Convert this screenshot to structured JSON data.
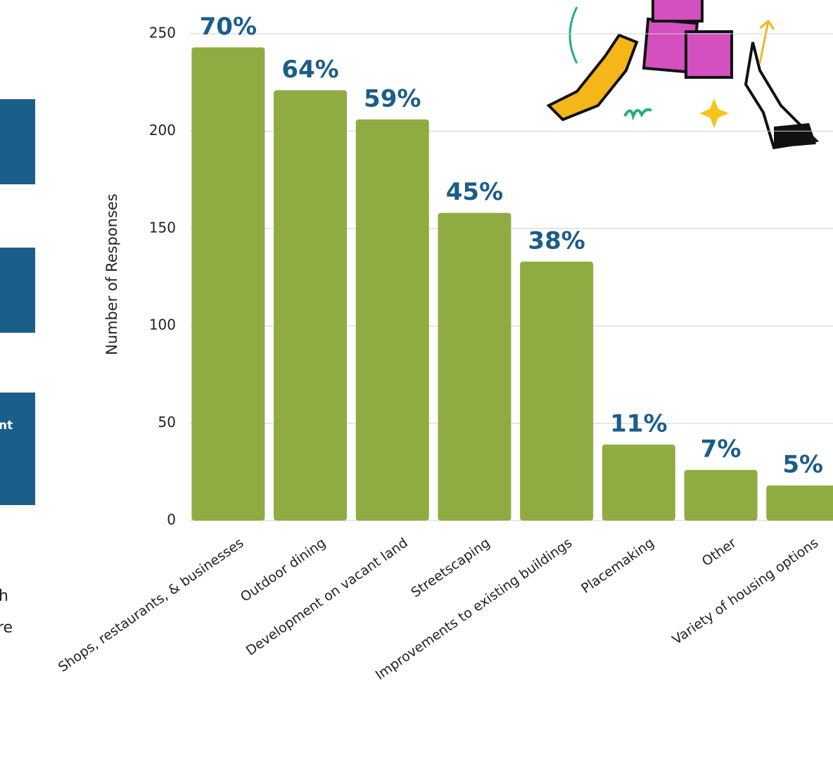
{
  "chart_data": {
    "type": "bar",
    "y_label": "Number of Responses",
    "categories": [
      "Shops, restaurants, & businesses",
      "Outdoor dining",
      "Development on vacant land",
      "Streetscaping",
      "Improvements to existing buildings",
      "Placemaking",
      "Other",
      "Variety of housing options"
    ],
    "values": [
      243,
      221,
      206,
      158,
      133,
      39,
      26,
      18
    ],
    "percent_labels": [
      "70%",
      "64%",
      "59%",
      "45%",
      "38%",
      "11%",
      "7%",
      "5%"
    ],
    "color": "#8fac42",
    "label_color": "#1c5d8a",
    "ylim": [
      0,
      250
    ],
    "yticks": [
      0,
      50,
      100,
      150,
      200,
      250
    ],
    "grid": true
  },
  "page_fragments": {
    "box_text": "nt",
    "line1": "h",
    "line2": "re"
  }
}
